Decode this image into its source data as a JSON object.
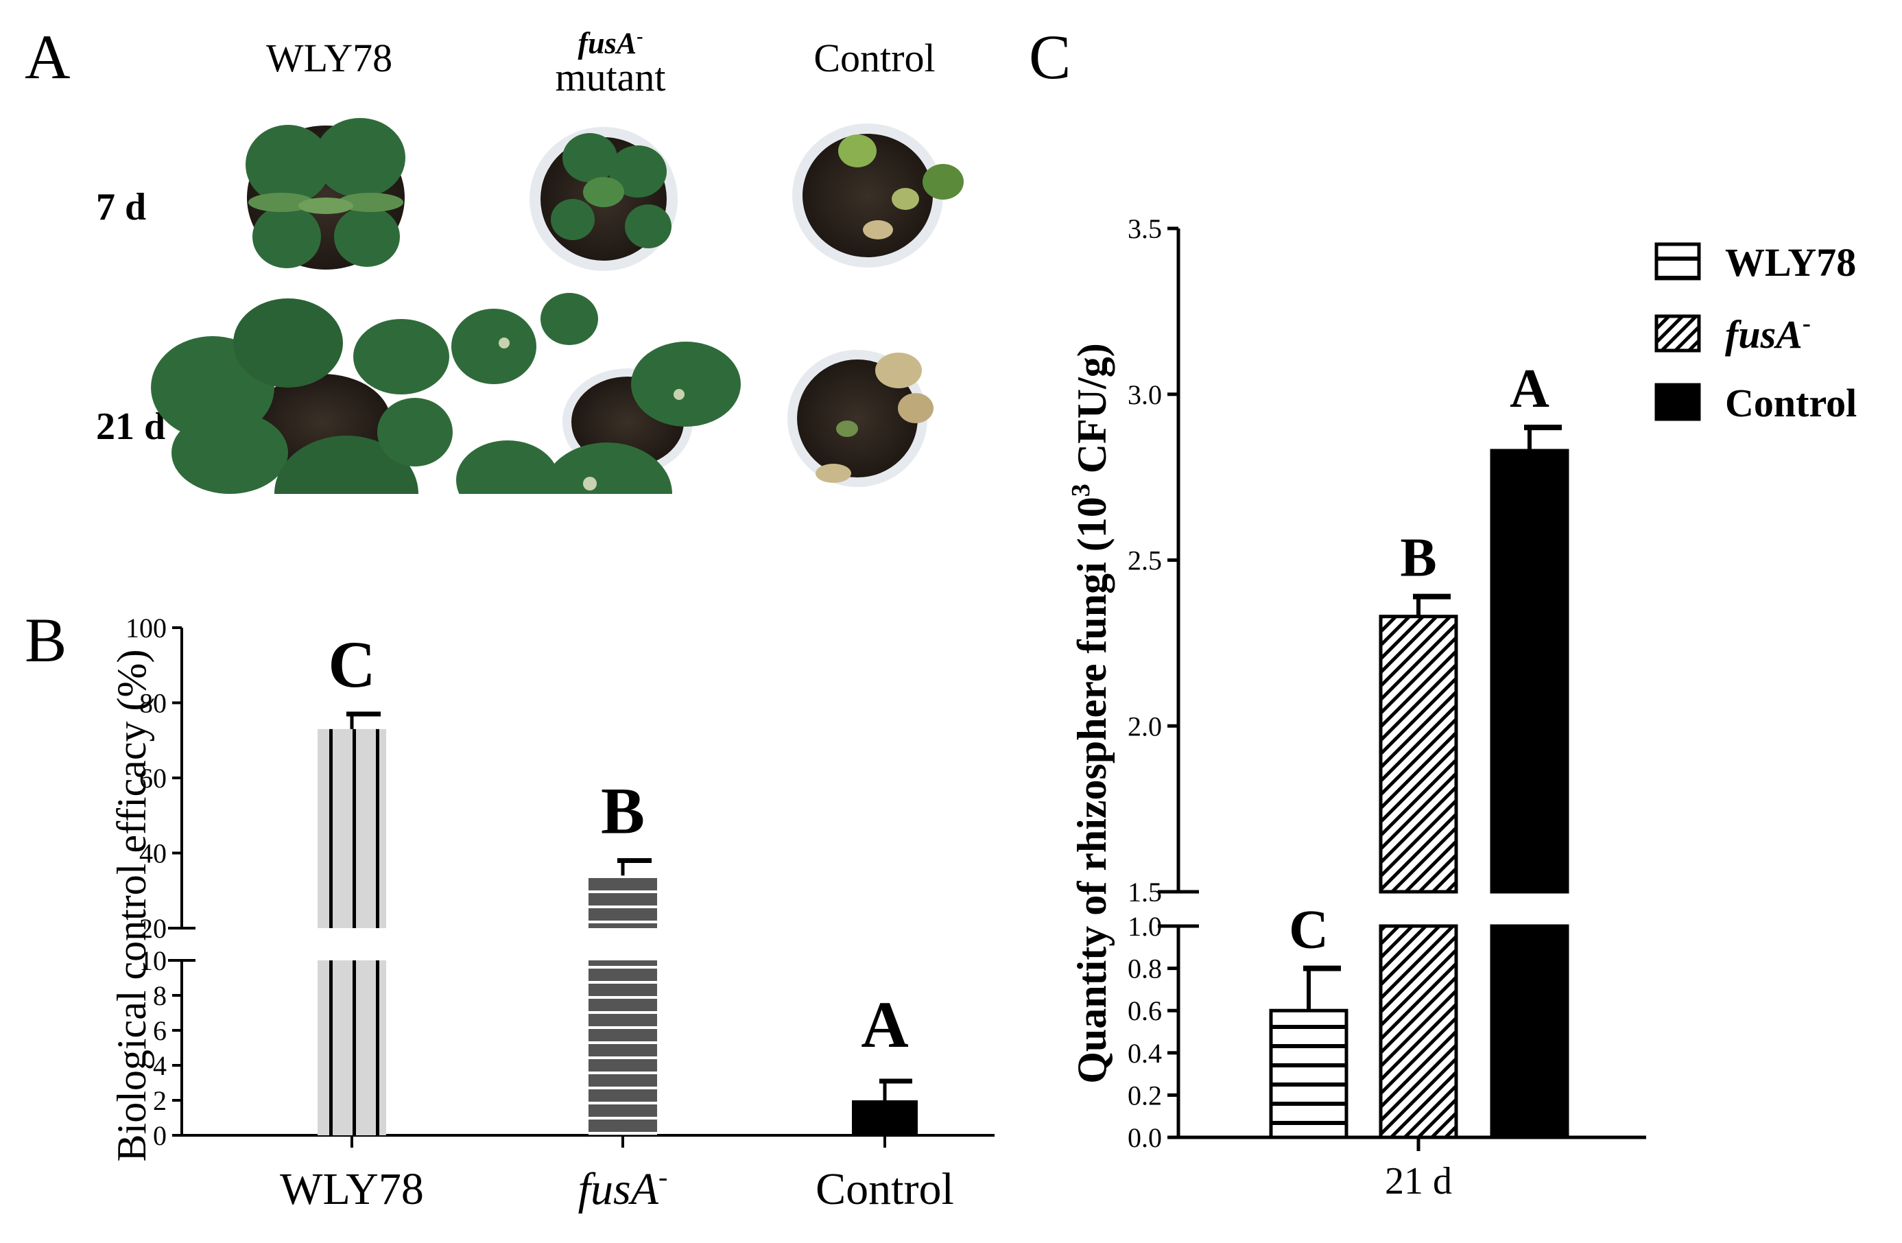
{
  "panels": {
    "a": "A",
    "b": "B",
    "c": "C"
  },
  "panel_a": {
    "columns": [
      {
        "label": "WLY78",
        "sub": "",
        "italic": false
      },
      {
        "label": "fusA",
        "sup": "-",
        "sub": "mutant",
        "italic": true
      },
      {
        "label": "Control",
        "sub": "",
        "italic": false
      }
    ],
    "rows": [
      "7 d",
      "21 d"
    ]
  },
  "colors": {
    "leaf": "#2f6b3a",
    "leaf_dark": "#21502a",
    "soil": "#2a221b",
    "pot": "#e6eaee",
    "wilted": "#c9b98a",
    "bar_light_gray": "#d6d6d6",
    "bar_dark_gray": "#555555",
    "black": "#000000"
  },
  "chart_data": [
    {
      "id": "B",
      "type": "bar",
      "ylabel": "Biological control efficacy (%)",
      "categories": [
        "WLY78",
        "fusA-",
        "Control"
      ],
      "category_display": [
        {
          "text": "WLY78",
          "italic": false,
          "sup": ""
        },
        {
          "text": "fusA",
          "italic": true,
          "sup": "-"
        },
        {
          "text": "Control",
          "italic": false,
          "sup": ""
        }
      ],
      "values": [
        73,
        34,
        2
      ],
      "errors": [
        4,
        4,
        1.1
      ],
      "letters": [
        "C",
        "B",
        "A"
      ],
      "axis_break": [
        10,
        20
      ],
      "ylim": [
        0,
        100
      ],
      "lower_ticks": [
        "0",
        "2",
        "4",
        "6",
        "8",
        "10"
      ],
      "upper_ticks": [
        "20",
        "40",
        "60",
        "80",
        "100"
      ]
    },
    {
      "id": "C",
      "type": "bar",
      "ylabel": "Quantity of rhizosphere fungi (10^3 CFU/g)",
      "ylabel_parts": {
        "main": "Quantity of rhizosphere fungi (10",
        "sup": "3",
        "tail": " CFU/g)"
      },
      "xlabel": "21 d",
      "series": [
        {
          "name": "WLY78",
          "value": 0.6,
          "error": 0.2,
          "letter": "C",
          "pattern": "horizontal",
          "italic": false,
          "sup": ""
        },
        {
          "name": "fusA",
          "value": 2.33,
          "error": 0.06,
          "letter": "B",
          "pattern": "diagonal",
          "italic": true,
          "sup": "-"
        },
        {
          "name": "Control",
          "value": 2.83,
          "error": 0.07,
          "letter": "A",
          "pattern": "solid",
          "italic": false,
          "sup": ""
        }
      ],
      "axis_break": [
        1.0,
        1.5
      ],
      "ylim": [
        0,
        3.5
      ],
      "lower_ticks": [
        "0.0",
        "0.2",
        "0.4",
        "0.6",
        "0.8",
        "1.0"
      ],
      "upper_ticks": [
        "1.5",
        "2.0",
        "2.5",
        "3.0",
        "3.5"
      ],
      "legend": "top-right"
    }
  ]
}
